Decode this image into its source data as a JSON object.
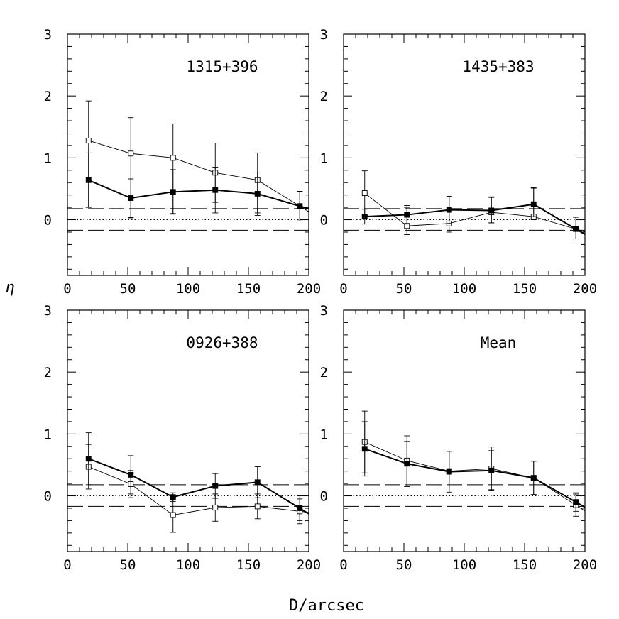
{
  "figure": {
    "xlabel": "D/arcsec",
    "ylabel": "η"
  },
  "chart_data": [
    {
      "type": "line",
      "panel": "top-left",
      "title": "1315+396",
      "xlim": [
        0,
        200
      ],
      "ylim": [
        -0.9,
        3
      ],
      "x_ticks": [
        0,
        50,
        100,
        150,
        200
      ],
      "y_ticks": [
        0,
        1,
        2,
        3
      ],
      "x_tick_labels": [
        "0",
        "50",
        "100",
        "150",
        "200"
      ],
      "y_tick_labels": [
        "0",
        "1",
        "2",
        "3"
      ],
      "reference_lines": {
        "dotted": 0.0,
        "dashed": [
          0.18,
          -0.17
        ]
      },
      "series": [
        {
          "name": "open squares",
          "marker": "open-square",
          "x": [
            17.5,
            52.5,
            87.5,
            122.5,
            157.5,
            192.5
          ],
          "y": [
            1.28,
            1.07,
            1.0,
            0.76,
            0.64,
            0.22
          ],
          "yerr_lo": [
            1.08,
            1.04,
            0.9,
            0.65,
            0.57,
            0.24
          ],
          "yerr_hi": [
            0.64,
            0.58,
            0.55,
            0.48,
            0.44,
            0.24
          ]
        },
        {
          "name": "filled squares",
          "marker": "filled-square",
          "x": [
            17.5,
            52.5,
            87.5,
            122.5,
            157.5,
            192.5
          ],
          "y": [
            0.64,
            0.35,
            0.45,
            0.48,
            0.42,
            0.22
          ],
          "yerr_lo": [
            0.44,
            0.31,
            0.36,
            0.2,
            0.31,
            0.21
          ],
          "yerr_hi": [
            0.44,
            0.31,
            0.36,
            0.37,
            0.35,
            0.24
          ]
        }
      ]
    },
    {
      "type": "line",
      "panel": "top-right",
      "title": "1435+383",
      "xlim": [
        0,
        200
      ],
      "ylim": [
        -0.9,
        3
      ],
      "x_ticks": [
        0,
        50,
        100,
        150,
        200
      ],
      "y_ticks": [
        0,
        1,
        2,
        3
      ],
      "x_tick_labels": [
        "0",
        "50",
        "100",
        "150",
        "200"
      ],
      "y_tick_labels": [
        "0",
        "1",
        "2",
        "3"
      ],
      "reference_lines": {
        "dotted": 0.0,
        "dashed": [
          0.18,
          -0.17
        ]
      },
      "series": [
        {
          "name": "open squares",
          "marker": "open-square",
          "x": [
            17.5,
            52.5,
            87.5,
            122.5,
            157.5,
            192.5
          ],
          "y": [
            0.43,
            -0.1,
            -0.06,
            0.12,
            0.05,
            -0.15
          ],
          "yerr_lo": [
            0.36,
            0.14,
            0.14,
            0.17,
            0.05,
            0.16
          ],
          "yerr_hi": [
            0.36,
            0.3,
            0.43,
            0.25,
            0.47,
            0.19
          ]
        },
        {
          "name": "filled squares",
          "marker": "filled-square",
          "x": [
            17.5,
            52.5,
            87.5,
            122.5,
            157.5,
            192.5
          ],
          "y": [
            0.05,
            0.08,
            0.16,
            0.15,
            0.25,
            -0.15
          ],
          "yerr_lo": [
            0.12,
            0.15,
            0.22,
            0.2,
            0.2,
            0.16
          ],
          "yerr_hi": [
            0.12,
            0.15,
            0.22,
            0.21,
            0.26,
            0.19
          ]
        }
      ]
    },
    {
      "type": "line",
      "panel": "bottom-left",
      "title": "0926+388",
      "xlim": [
        0,
        200
      ],
      "ylim": [
        -0.9,
        3
      ],
      "x_ticks": [
        0,
        50,
        100,
        150,
        200
      ],
      "y_ticks": [
        0,
        1,
        2,
        3
      ],
      "x_tick_labels": [
        "0",
        "50",
        "100",
        "150",
        "200"
      ],
      "y_tick_labels": [
        "0",
        "1",
        "2",
        "3"
      ],
      "reference_lines": {
        "dotted": 0.0,
        "dashed": [
          0.18,
          -0.17
        ]
      },
      "series": [
        {
          "name": "open squares",
          "marker": "open-square",
          "x": [
            17.5,
            52.5,
            87.5,
            122.5,
            157.5,
            192.5
          ],
          "y": [
            0.47,
            0.19,
            -0.31,
            -0.19,
            -0.17,
            -0.25
          ],
          "yerr_lo": [
            0.36,
            0.22,
            0.28,
            0.22,
            0.2,
            0.2
          ],
          "yerr_hi": [
            0.36,
            0.22,
            0.28,
            0.22,
            0.2,
            0.2
          ]
        },
        {
          "name": "filled squares",
          "marker": "filled-square",
          "x": [
            17.5,
            52.5,
            87.5,
            122.5,
            157.5,
            192.5
          ],
          "y": [
            0.6,
            0.34,
            -0.02,
            0.16,
            0.22,
            -0.2
          ],
          "yerr_lo": [
            0.42,
            0.31,
            0.07,
            0.2,
            0.25,
            0.2
          ],
          "yerr_hi": [
            0.42,
            0.31,
            0.07,
            0.2,
            0.25,
            0.2
          ]
        }
      ]
    },
    {
      "type": "line",
      "panel": "bottom-right",
      "title": "Mean",
      "xlim": [
        0,
        200
      ],
      "ylim": [
        -0.9,
        3
      ],
      "x_ticks": [
        0,
        50,
        100,
        150,
        200
      ],
      "y_ticks": [
        0,
        1,
        2,
        3
      ],
      "x_tick_labels": [
        "0",
        "50",
        "100",
        "150",
        "200"
      ],
      "y_tick_labels": [
        "0",
        "1",
        "2",
        "3"
      ],
      "reference_lines": {
        "dotted": 0.0,
        "dashed": [
          0.18,
          -0.17
        ]
      },
      "series": [
        {
          "name": "open squares",
          "marker": "open-square",
          "x": [
            17.5,
            52.5,
            87.5,
            122.5,
            157.5,
            192.5
          ],
          "y": [
            0.87,
            0.57,
            0.4,
            0.44,
            0.29,
            -0.15
          ],
          "yerr_lo": [
            0.5,
            0.42,
            0.32,
            0.34,
            0.27,
            0.18
          ],
          "yerr_hi": [
            0.5,
            0.4,
            0.32,
            0.35,
            0.27,
            0.18
          ]
        },
        {
          "name": "filled squares",
          "marker": "filled-square",
          "x": [
            17.5,
            52.5,
            87.5,
            122.5,
            157.5,
            192.5
          ],
          "y": [
            0.76,
            0.52,
            0.39,
            0.41,
            0.29,
            -0.1
          ],
          "yerr_lo": [
            0.44,
            0.36,
            0.33,
            0.32,
            0.27,
            0.15
          ],
          "yerr_hi": [
            0.44,
            0.36,
            0.33,
            0.32,
            0.27,
            0.15
          ]
        }
      ]
    }
  ]
}
